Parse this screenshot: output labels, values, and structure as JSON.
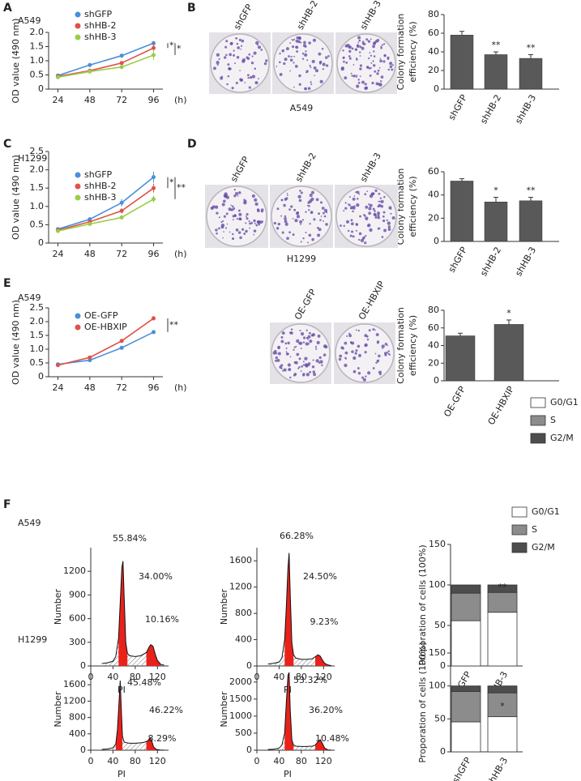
{
  "chart_data": [
    {
      "type": "line",
      "panel": "A",
      "title": "A549",
      "xlabel": "(h)",
      "ylabel": "OD value (490 nm)",
      "x": [
        24,
        48,
        72,
        96
      ],
      "xlim": [
        17,
        103
      ],
      "xticks": [
        24,
        48,
        72,
        96
      ],
      "ylim": [
        0,
        2
      ],
      "yticks": [
        0,
        0.5,
        {
          "value": 1,
          "label": "1.0"
        },
        1.5,
        {
          "value": 2,
          "label": "2.0"
        }
      ],
      "series": [
        {
          "name": "shGFP",
          "color": "#4a90d9",
          "values": [
            0.48,
            0.85,
            1.18,
            1.62
          ],
          "errors": [
            0.03,
            0.04,
            0.08,
            0.06
          ]
        },
        {
          "name": "shHB-2",
          "color": "#e0524a",
          "values": [
            0.45,
            0.65,
            0.92,
            1.45
          ],
          "errors": [
            0.02,
            0.03,
            0.06,
            0.2
          ]
        },
        {
          "name": "shHB-3",
          "color": "#9acd4a",
          "values": [
            0.42,
            0.62,
            0.78,
            1.2
          ],
          "errors": [
            0.02,
            0.03,
            0.06,
            0.18
          ]
        }
      ],
      "annotations": [
        "*",
        "*"
      ]
    },
    {
      "type": "bar",
      "ylabel": [
        "Colony formation",
        "efficiency (%)"
      ],
      "categories": [
        "shGFP",
        "shHB-2",
        "shHB-3"
      ],
      "values": [
        58,
        37,
        33
      ],
      "errors": [
        4,
        3,
        4
      ],
      "color": "#595959",
      "ylim": [
        0,
        80
      ],
      "yticks": [
        0,
        20,
        40,
        60,
        80
      ],
      "annotations": [
        "**",
        "**"
      ]
    },
    {
      "type": "line",
      "panel": "C",
      "title": "H1299",
      "xlabel": "(h)",
      "ylabel": "OD value (490 nm)",
      "x": [
        24,
        48,
        72,
        96
      ],
      "xlim": [
        17,
        103
      ],
      "xticks": [
        24,
        48,
        72,
        96
      ],
      "ylim": [
        0,
        2.5
      ],
      "yticks": [
        0,
        0.5,
        {
          "value": 1,
          "label": "1.0"
        },
        1.5,
        {
          "value": 2,
          "label": "2.0"
        },
        2.5
      ],
      "series": [
        {
          "name": "shGFP",
          "color": "#4a90d9",
          "values": [
            0.38,
            0.65,
            1.1,
            1.8
          ],
          "errors": [
            0.03,
            0.05,
            0.1,
            0.15
          ]
        },
        {
          "name": "shHB-2",
          "color": "#e0524a",
          "values": [
            0.35,
            0.58,
            0.88,
            1.5
          ],
          "errors": [
            0.02,
            0.04,
            0.07,
            0.12
          ]
        },
        {
          "name": "shHB-3",
          "color": "#9acd4a",
          "values": [
            0.33,
            0.52,
            0.7,
            1.2
          ],
          "errors": [
            0.02,
            0.03,
            0.06,
            0.1
          ]
        }
      ],
      "annotations": [
        "*",
        "**"
      ]
    },
    {
      "type": "bar",
      "ylabel": [
        "Colony formation",
        "efficiency (%)"
      ],
      "categories": [
        "shGFP",
        "shHB-2",
        "shHB-3"
      ],
      "values": [
        52,
        34,
        35
      ],
      "errors": [
        2,
        4,
        3
      ],
      "color": "#595959",
      "ylim": [
        0,
        60
      ],
      "yticks": [
        0,
        20,
        40,
        60
      ],
      "annotations": [
        "*",
        "**"
      ]
    },
    {
      "type": "line",
      "panel": "E",
      "title": "A549",
      "xlabel": "(h)",
      "ylabel": "OD value (490 nm)",
      "x": [
        24,
        48,
        72,
        96
      ],
      "xlim": [
        17,
        103
      ],
      "xticks": [
        24,
        48,
        72,
        96
      ],
      "ylim": [
        0,
        2.5
      ],
      "yticks": [
        0,
        0.5,
        {
          "value": 1,
          "label": "1.0"
        },
        1.5,
        {
          "value": 2,
          "label": "2.0"
        },
        2.5
      ],
      "series": [
        {
          "name": "OE-GFP",
          "color": "#4a90d9",
          "values": [
            0.45,
            0.6,
            1.05,
            1.62
          ],
          "errors": [
            0.03,
            0.04,
            0.05,
            0.05
          ]
        },
        {
          "name": "OE-HBXIP",
          "color": "#e0524a",
          "values": [
            0.42,
            0.7,
            1.3,
            2.12
          ],
          "errors": [
            0.02,
            0.04,
            0.06,
            0.08
          ]
        }
      ],
      "annotations": [
        "**"
      ]
    },
    {
      "type": "bar",
      "ylabel": [
        "Colony formation",
        "efficiency (%)"
      ],
      "categories": [
        "OE-GFP",
        "OE-HBXIP"
      ],
      "values": [
        51,
        64
      ],
      "errors": [
        3,
        5
      ],
      "color": "#595959",
      "ylim": [
        0,
        80
      ],
      "yticks": [
        0,
        20,
        40,
        60,
        80
      ],
      "annotations": [
        "*"
      ]
    },
    {
      "type": "flow",
      "panel": "F",
      "title": "A549",
      "xlabel": "PI",
      "ylabel": "Number",
      "color": "#e8221b",
      "x": [
        20,
        30,
        40,
        45,
        50,
        53,
        56,
        58,
        60,
        63,
        66,
        70,
        80,
        90,
        100,
        105,
        108,
        112,
        116,
        120,
        126,
        132
      ],
      "values": [
        30,
        40,
        60,
        120,
        350,
        800,
        1250,
        1330,
        900,
        300,
        160,
        130,
        120,
        130,
        170,
        240,
        270,
        250,
        150,
        70,
        20,
        10
      ],
      "xlim": [
        0,
        140
      ],
      "xticks": [
        0,
        40,
        80,
        120
      ],
      "ylim": [
        0,
        1500
      ],
      "yticks": [
        0,
        300,
        600,
        900,
        1200
      ],
      "annotations": [
        "55.84%",
        "34.00%",
        "10.16%"
      ]
    },
    {
      "type": "flow",
      "xlabel": "PI",
      "ylabel": "Number",
      "color": "#e8221b",
      "x": [
        20,
        30,
        40,
        45,
        50,
        53,
        56,
        58,
        60,
        63,
        66,
        70,
        80,
        90,
        100,
        105,
        110,
        114,
        118,
        122,
        128,
        134
      ],
      "values": [
        30,
        40,
        60,
        120,
        400,
        900,
        1500,
        1720,
        1100,
        350,
        170,
        120,
        100,
        100,
        110,
        140,
        170,
        150,
        90,
        40,
        15,
        5
      ],
      "xlim": [
        0,
        140
      ],
      "xticks": [
        0,
        40,
        80,
        120
      ],
      "ylim": [
        0,
        1800
      ],
      "yticks": [
        0,
        400,
        800,
        1200,
        1600
      ],
      "annotations": [
        "66.28%",
        "24.50%",
        "9.23%"
      ]
    },
    {
      "type": "stacked_bar",
      "ylabel": "Proporation of cells (100%)",
      "categories": [
        "shGFP",
        "shHB-3"
      ],
      "series": [
        {
          "name": "G0/G1",
          "color": "#ffffff",
          "values": [
            55.84,
            66.28
          ]
        },
        {
          "name": "S",
          "color": "#8c8c8c",
          "values": [
            34.0,
            24.5
          ]
        },
        {
          "name": "G2/M",
          "color": "#4d4d4d",
          "values": [
            10.16,
            9.23
          ]
        }
      ],
      "ylim": [
        0,
        150
      ],
      "yticks": [
        0,
        50,
        100,
        150
      ],
      "annotations": [
        "**"
      ]
    },
    {
      "type": "flow",
      "title": "H1299",
      "xlabel": "PI",
      "ylabel": "Number",
      "color": "#e8221b",
      "x": [
        20,
        30,
        40,
        45,
        48,
        51,
        53,
        55,
        57,
        60,
        65,
        70,
        80,
        90,
        95,
        100,
        104,
        107,
        110,
        113,
        118,
        125,
        132
      ],
      "values": [
        20,
        30,
        60,
        150,
        500,
        1200,
        1700,
        1000,
        350,
        200,
        180,
        170,
        170,
        180,
        190,
        210,
        250,
        300,
        220,
        80,
        20,
        5,
        2
      ],
      "xlim": [
        0,
        140
      ],
      "xticks": [
        0,
        40,
        80,
        120
      ],
      "ylim": [
        0,
        2000
      ],
      "yticks": [
        0,
        400,
        800,
        1200,
        1600
      ],
      "annotations": [
        "45.48%",
        "46.22%",
        "8.29%"
      ]
    },
    {
      "type": "flow",
      "xlabel": "PI",
      "ylabel": "Number",
      "color": "#e8221b",
      "x": [
        20,
        30,
        40,
        45,
        50,
        53,
        56,
        58,
        60,
        63,
        66,
        70,
        80,
        90,
        100,
        105,
        110,
        114,
        118,
        122,
        128,
        134
      ],
      "values": [
        20,
        30,
        60,
        150,
        500,
        1400,
        2200,
        2280,
        1200,
        300,
        150,
        120,
        110,
        110,
        120,
        150,
        250,
        310,
        200,
        60,
        10,
        2
      ],
      "xlim": [
        0,
        140
      ],
      "xticks": [
        0,
        40,
        80,
        120
      ],
      "ylim": [
        0,
        2400
      ],
      "yticks": [
        0,
        500,
        1000,
        1500,
        2000
      ],
      "annotations": [
        "53.32%",
        "36.20%",
        "10.48%"
      ]
    },
    {
      "type": "stacked_bar",
      "ylabel": "Proporation of cells (100%)",
      "categories": [
        "shGFP",
        "shHB-3"
      ],
      "series": [
        {
          "name": "G0/G1",
          "color": "#ffffff",
          "values": [
            45.48,
            53.32
          ]
        },
        {
          "name": "S",
          "color": "#8c8c8c",
          "values": [
            46.22,
            36.2
          ]
        },
        {
          "name": "G2/M",
          "color": "#4d4d4d",
          "values": [
            8.29,
            10.48
          ]
        }
      ],
      "ylim": [
        0,
        150
      ],
      "yticks": [
        0,
        50,
        100,
        150
      ],
      "annotations": [
        "*"
      ]
    }
  ],
  "photo_panels": [
    {
      "panel": "B",
      "labels": [
        "shGFP",
        "shHB-2",
        "shHB-3"
      ],
      "caption": "A549"
    },
    {
      "panel": "D",
      "labels": [
        "shGFP",
        "shHB-2",
        "shHB-3"
      ],
      "caption": "H1299"
    },
    {
      "labels": [
        "OE-GFP",
        "OE-HBXIP"
      ]
    }
  ]
}
